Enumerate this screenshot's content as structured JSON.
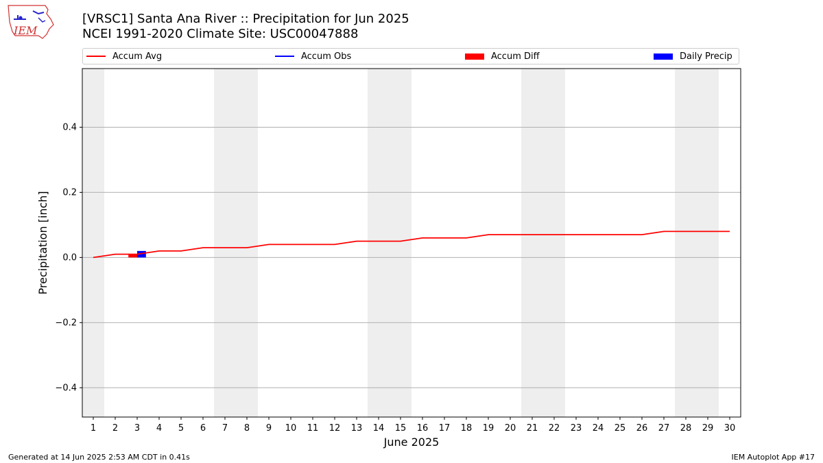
{
  "header": {
    "title_line1": "[VRSC1] Santa Ana River :: Precipitation for Jun 2025",
    "title_line2": "NCEI 1991-2020 Climate Site: USC00047888",
    "logo_text": "IEM"
  },
  "legend": {
    "items": [
      {
        "label": "Accum Avg",
        "color": "#ff0000",
        "kind": "line"
      },
      {
        "label": "Accum Obs",
        "color": "#0000ff",
        "kind": "line"
      },
      {
        "label": "Accum Diff",
        "color": "#ff0000",
        "kind": "bar"
      },
      {
        "label": "Daily Precip",
        "color": "#0000ff",
        "kind": "bar"
      }
    ]
  },
  "footer": {
    "left": "Generated at 14 Jun 2025 2:53 AM CDT in 0.41s",
    "right": "IEM Autoplot App #17"
  },
  "chart_data": {
    "type": "line",
    "xlabel": "June 2025",
    "ylabel": "Precipitation [inch]",
    "xlim": [
      0.5,
      30.5
    ],
    "ylim": [
      -0.49,
      0.58
    ],
    "x_ticks": [
      1,
      2,
      3,
      4,
      5,
      6,
      7,
      8,
      9,
      10,
      11,
      12,
      13,
      14,
      15,
      16,
      17,
      18,
      19,
      20,
      21,
      22,
      23,
      24,
      25,
      26,
      27,
      28,
      29,
      30
    ],
    "y_ticks": [
      -0.4,
      -0.2,
      0.0,
      0.2,
      0.4
    ],
    "y_tick_labels": [
      "−0.4",
      "−0.2",
      "0.0",
      "0.2",
      "0.4"
    ],
    "grid": "horizontal",
    "weekend_shading": [
      [
        0.5,
        1.5
      ],
      [
        6.5,
        8.5
      ],
      [
        13.5,
        15.5
      ],
      [
        20.5,
        22.5
      ],
      [
        27.5,
        29.5
      ]
    ],
    "weekend_color": "#eeeeee",
    "series": [
      {
        "name": "Accum Avg",
        "color": "#ff0000",
        "x": [
          1,
          2,
          3,
          4,
          5,
          6,
          7,
          8,
          9,
          10,
          11,
          12,
          13,
          14,
          15,
          16,
          17,
          18,
          19,
          20,
          21,
          22,
          23,
          24,
          25,
          26,
          27,
          28,
          29,
          30
        ],
        "values": [
          0.0,
          0.01,
          0.01,
          0.02,
          0.02,
          0.03,
          0.03,
          0.03,
          0.04,
          0.04,
          0.04,
          0.04,
          0.05,
          0.05,
          0.05,
          0.06,
          0.06,
          0.06,
          0.07,
          0.07,
          0.07,
          0.07,
          0.07,
          0.07,
          0.07,
          0.07,
          0.08,
          0.08,
          0.08,
          0.08
        ]
      }
    ],
    "bars": [
      {
        "name": "Accum Diff",
        "color": "#ff0000",
        "x": 3,
        "offset": -0.2,
        "value": 0.01
      },
      {
        "name": "Daily Precip",
        "color": "#0000ff",
        "x": 3,
        "offset": 0.2,
        "value": 0.02
      }
    ]
  }
}
